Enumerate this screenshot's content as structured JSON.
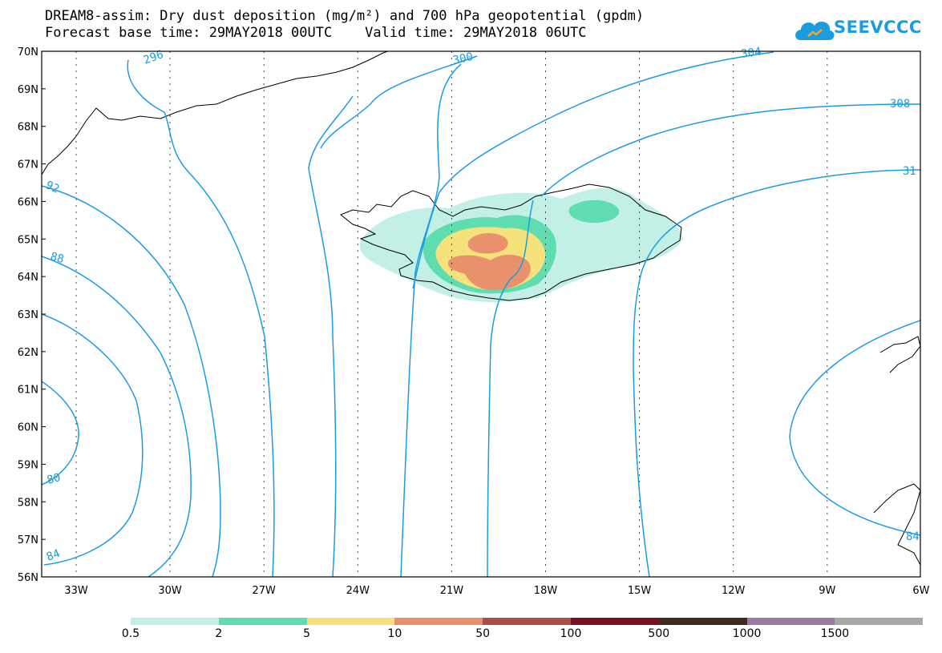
{
  "title": {
    "line1": "DREAM8-assim: Dry dust deposition (mg/m²) and 700 hPa geopotential (gpdm)",
    "line2": "Forecast base time: 29MAY2018 00UTC    Valid time: 29MAY2018 06UTC"
  },
  "logo": {
    "text": "SEEVCCC",
    "icon": "cloud-icon",
    "color": "#1a9de0"
  },
  "map": {
    "lat_labels": [
      "70N",
      "69N",
      "68N",
      "67N",
      "66N",
      "65N",
      "64N",
      "63N",
      "62N",
      "61N",
      "60N",
      "59N",
      "58N",
      "57N",
      "56N"
    ],
    "lon_labels": [
      "33W",
      "30W",
      "27W",
      "24W",
      "21W",
      "18W",
      "15W",
      "12W",
      "9W",
      "6W"
    ],
    "contour_color": "#1a9de0",
    "contour_labels": [
      "296",
      "300",
      "304",
      "308",
      "31",
      "92",
      "88",
      "80",
      "84",
      "84"
    ]
  },
  "colorbar": {
    "colors": [
      "#c2f0e6",
      "#5fdcb0",
      "#f6e27a",
      "#e8916c",
      "#a65048",
      "#7a1024",
      "#3e2a1e",
      "#9b7aa3",
      "#a8a8a8"
    ],
    "ticks": [
      "0.5",
      "2",
      "5",
      "10",
      "50",
      "100",
      "500",
      "1000",
      "1500"
    ]
  }
}
